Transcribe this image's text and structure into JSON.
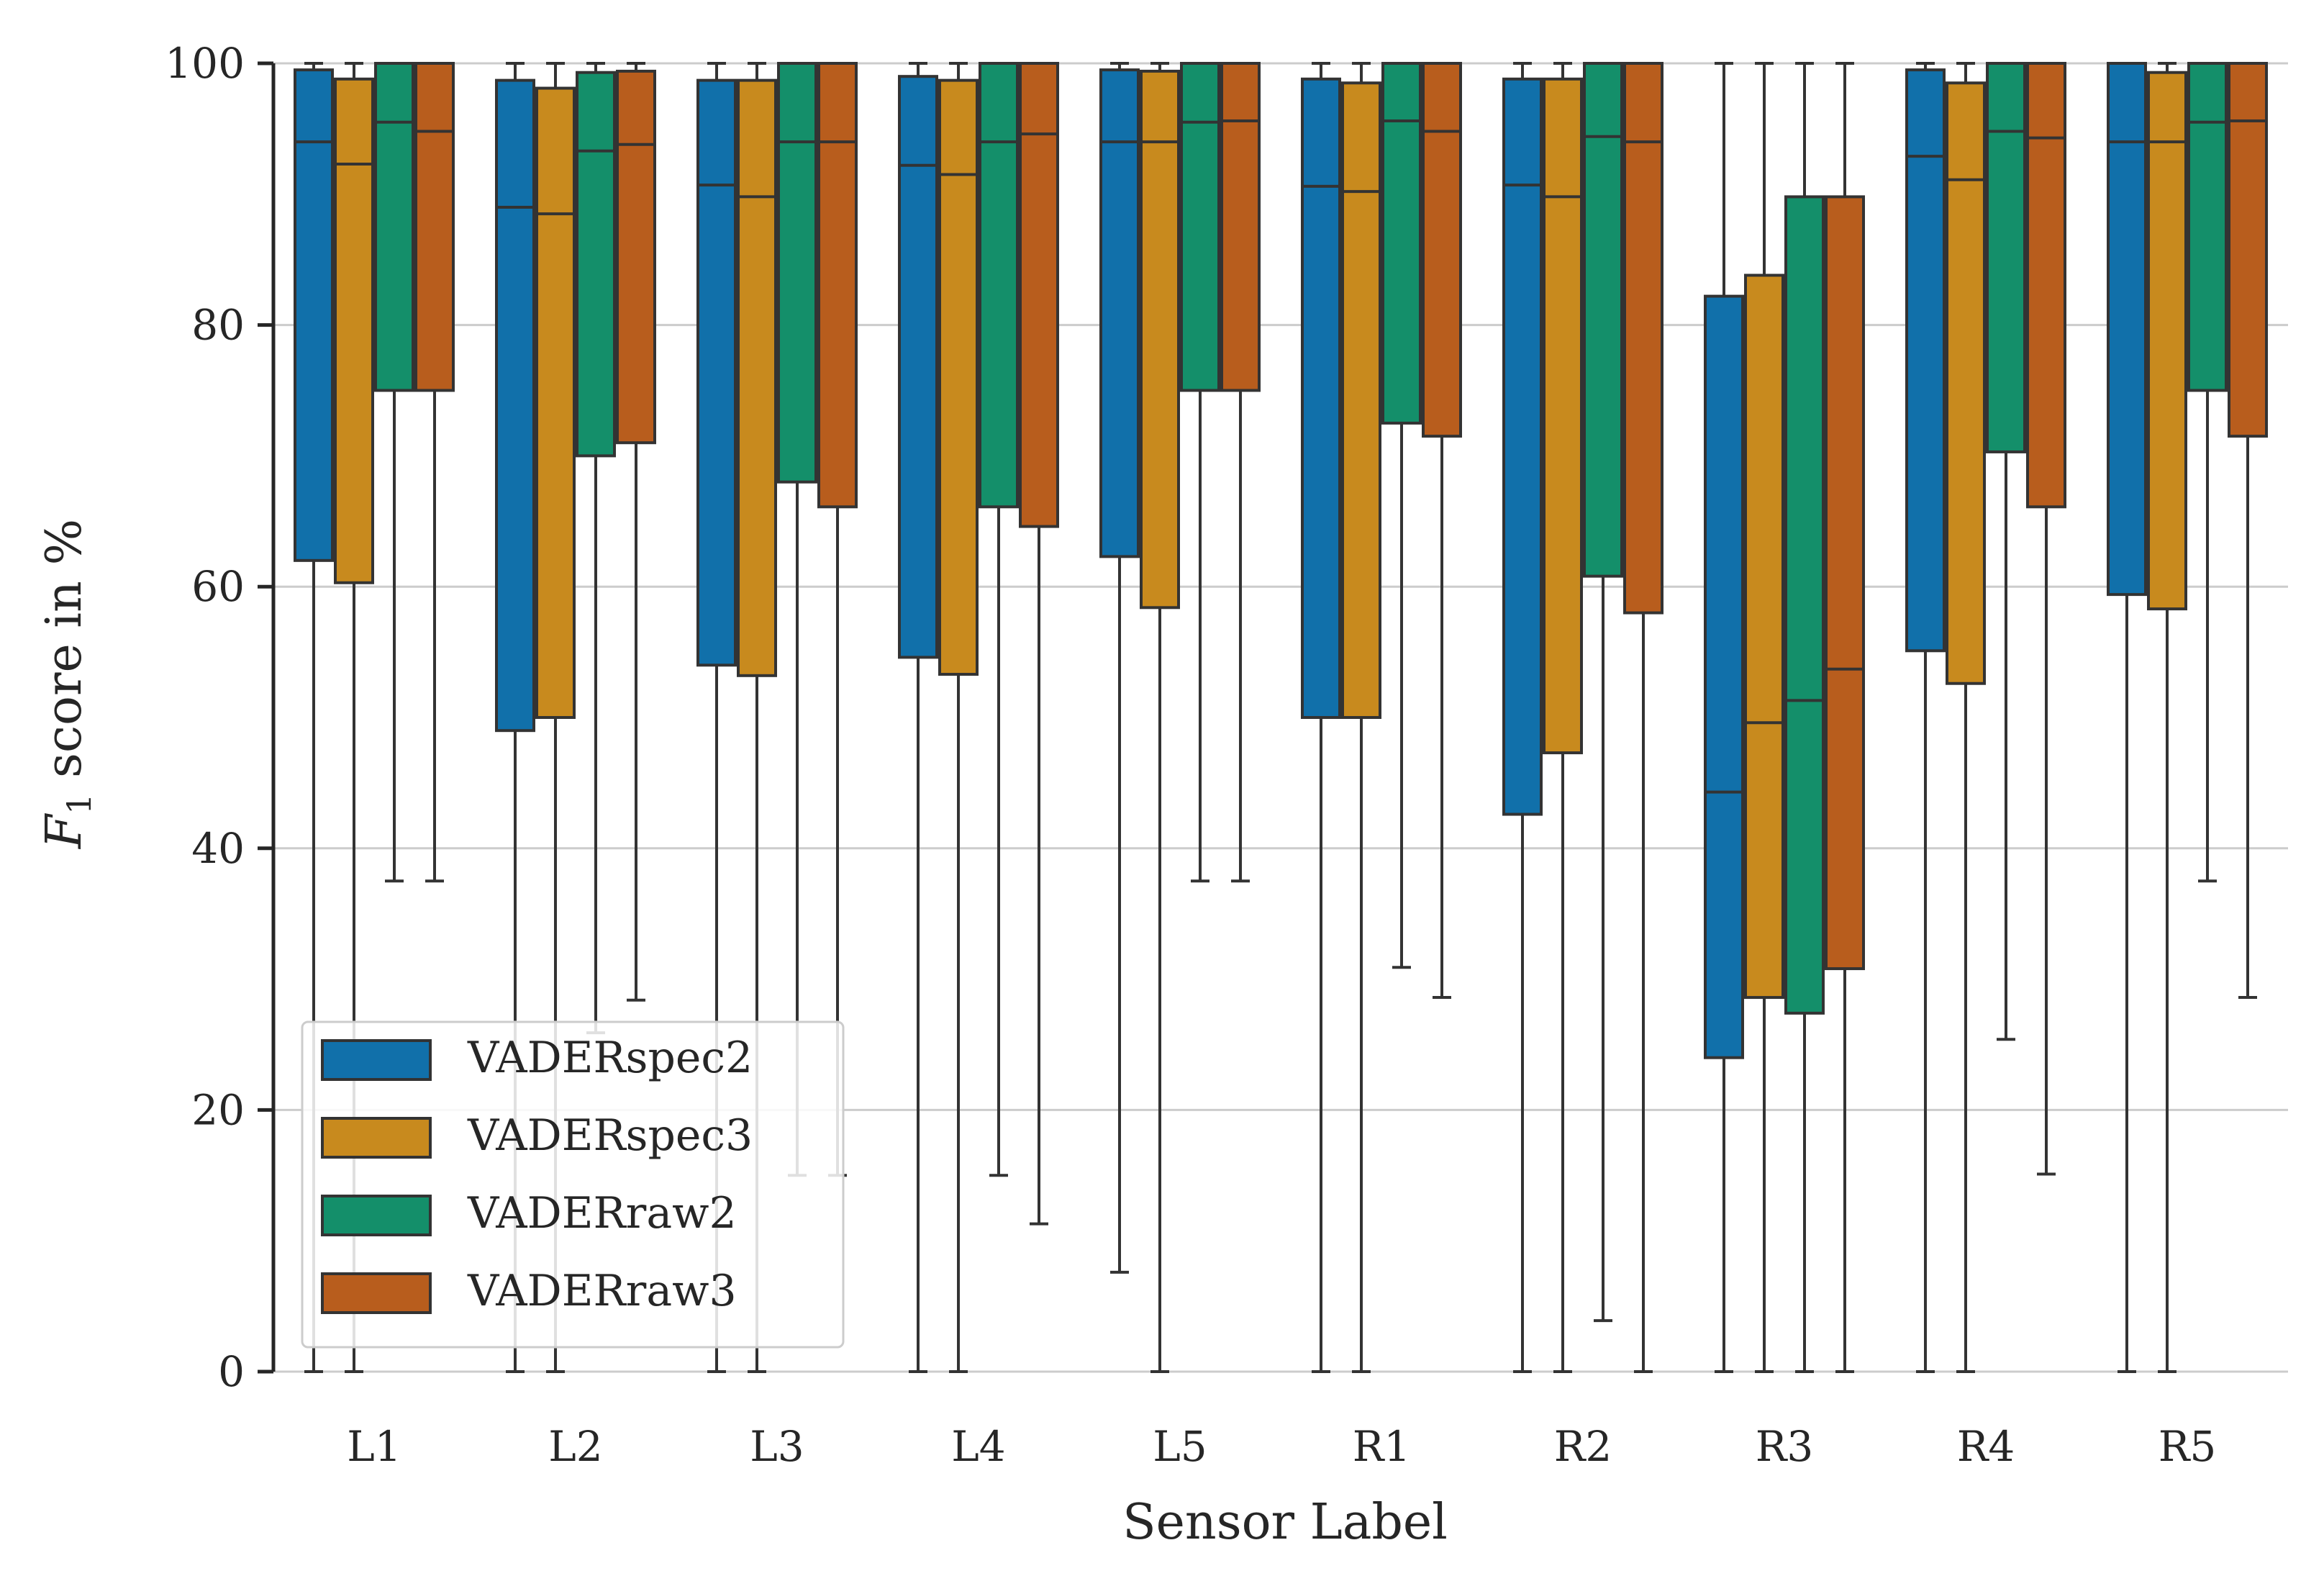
{
  "chart_data": {
    "type": "box",
    "title": "",
    "xlabel": "Sensor Label",
    "ylabel": "F1 score in %",
    "ylabel_parts": {
      "symbol": "F",
      "subscript": "1",
      "rest": " score in %"
    },
    "ylim": [
      0,
      100
    ],
    "yticks": [
      0,
      20,
      40,
      60,
      80,
      100
    ],
    "grid": "horizontal",
    "legend_position": "lower-left",
    "categories": [
      "L1",
      "L2",
      "L3",
      "L4",
      "L5",
      "R1",
      "R2",
      "R3",
      "R4",
      "R5"
    ],
    "series": [
      {
        "name": "VADERspec2",
        "color": "#1170aa",
        "boxes": [
          {
            "whislo": 0,
            "q1": 62,
            "med": 94,
            "q3": 99.5,
            "whishi": 100
          },
          {
            "whislo": 0,
            "q1": 49,
            "med": 89,
            "q3": 98.7,
            "whishi": 100
          },
          {
            "whislo": 0,
            "q1": 54,
            "med": 90.7,
            "q3": 98.7,
            "whishi": 100
          },
          {
            "whislo": 0,
            "q1": 54.6,
            "med": 92.2,
            "q3": 99,
            "whishi": 100
          },
          {
            "whislo": 7.6,
            "q1": 62.3,
            "med": 94,
            "q3": 99.5,
            "whishi": 100
          },
          {
            "whislo": 0,
            "q1": 50,
            "med": 90.6,
            "q3": 98.8,
            "whishi": 100
          },
          {
            "whislo": 0,
            "q1": 42.6,
            "med": 90.7,
            "q3": 98.8,
            "whishi": 100
          },
          {
            "whislo": 0,
            "q1": 24,
            "med": 44.3,
            "q3": 82.2,
            "whishi": 100
          },
          {
            "whislo": 0,
            "q1": 55.1,
            "med": 92.9,
            "q3": 99.5,
            "whishi": 100
          },
          {
            "whislo": 0,
            "q1": 59.4,
            "med": 94,
            "q3": 100,
            "whishi": 100
          }
        ]
      },
      {
        "name": "VADERspec3",
        "color": "#c88a1e",
        "boxes": [
          {
            "whislo": 0,
            "q1": 60.3,
            "med": 92.3,
            "q3": 98.8,
            "whishi": 100
          },
          {
            "whislo": 0,
            "q1": 50,
            "med": 88.5,
            "q3": 98.1,
            "whishi": 100
          },
          {
            "whislo": 0,
            "q1": 53.2,
            "med": 89.8,
            "q3": 98.7,
            "whishi": 100
          },
          {
            "whislo": 0,
            "q1": 53.3,
            "med": 91.5,
            "q3": 98.7,
            "whishi": 100
          },
          {
            "whislo": 0,
            "q1": 58.4,
            "med": 94,
            "q3": 99.4,
            "whishi": 100
          },
          {
            "whislo": 0,
            "q1": 50,
            "med": 90.2,
            "q3": 98.5,
            "whishi": 100
          },
          {
            "whislo": 0,
            "q1": 47.3,
            "med": 89.8,
            "q3": 98.8,
            "whishi": 100
          },
          {
            "whislo": 0,
            "q1": 28.6,
            "med": 49.6,
            "q3": 83.8,
            "whishi": 100
          },
          {
            "whislo": 0,
            "q1": 52.6,
            "med": 91.1,
            "q3": 98.5,
            "whishi": 100
          },
          {
            "whislo": 0,
            "q1": 58.3,
            "med": 94,
            "q3": 99.3,
            "whishi": 100
          }
        ]
      },
      {
        "name": "VADERraw2",
        "color": "#148f6a",
        "boxes": [
          {
            "whislo": 37.5,
            "q1": 75,
            "med": 95.5,
            "q3": 100,
            "whishi": 100
          },
          {
            "whislo": 25.9,
            "q1": 70,
            "med": 93.3,
            "q3": 99.3,
            "whishi": 100
          },
          {
            "whislo": 15,
            "q1": 68,
            "med": 94,
            "q3": 100,
            "whishi": 100
          },
          {
            "whislo": 15,
            "q1": 66.1,
            "med": 94,
            "q3": 100,
            "whishi": 100
          },
          {
            "whislo": 37.5,
            "q1": 75,
            "med": 95.5,
            "q3": 100,
            "whishi": 100
          },
          {
            "whislo": 30.9,
            "q1": 72.5,
            "med": 95.6,
            "q3": 100,
            "whishi": 100
          },
          {
            "whislo": 3.9,
            "q1": 60.8,
            "med": 94.4,
            "q3": 100,
            "whishi": 100
          },
          {
            "whislo": 0,
            "q1": 27.4,
            "med": 51.3,
            "q3": 89.8,
            "whishi": 100
          },
          {
            "whislo": 25.4,
            "q1": 70.3,
            "med": 94.8,
            "q3": 100,
            "whishi": 100
          },
          {
            "whislo": 37.5,
            "q1": 75,
            "med": 95.5,
            "q3": 100,
            "whishi": 100
          }
        ]
      },
      {
        "name": "VADERraw3",
        "color": "#b85d1d",
        "boxes": [
          {
            "whislo": 37.5,
            "q1": 75,
            "med": 94.8,
            "q3": 100,
            "whishi": 100
          },
          {
            "whislo": 28.4,
            "q1": 71,
            "med": 93.8,
            "q3": 99.4,
            "whishi": 100
          },
          {
            "whislo": 15,
            "q1": 66.1,
            "med": 94,
            "q3": 100,
            "whishi": 100
          },
          {
            "whislo": 11.3,
            "q1": 64.6,
            "med": 94.6,
            "q3": 100,
            "whishi": 100
          },
          {
            "whislo": 37.5,
            "q1": 75,
            "med": 95.6,
            "q3": 100,
            "whishi": 100
          },
          {
            "whislo": 28.6,
            "q1": 71.5,
            "med": 94.8,
            "q3": 100,
            "whishi": 100
          },
          {
            "whislo": 0,
            "q1": 58,
            "med": 94,
            "q3": 100,
            "whishi": 100
          },
          {
            "whislo": 0,
            "q1": 30.8,
            "med": 53.7,
            "q3": 89.8,
            "whishi": 100
          },
          {
            "whislo": 15.1,
            "q1": 66.1,
            "med": 94.3,
            "q3": 100,
            "whishi": 100
          },
          {
            "whislo": 28.6,
            "q1": 71.5,
            "med": 95.6,
            "q3": 100,
            "whishi": 100
          }
        ]
      }
    ]
  }
}
